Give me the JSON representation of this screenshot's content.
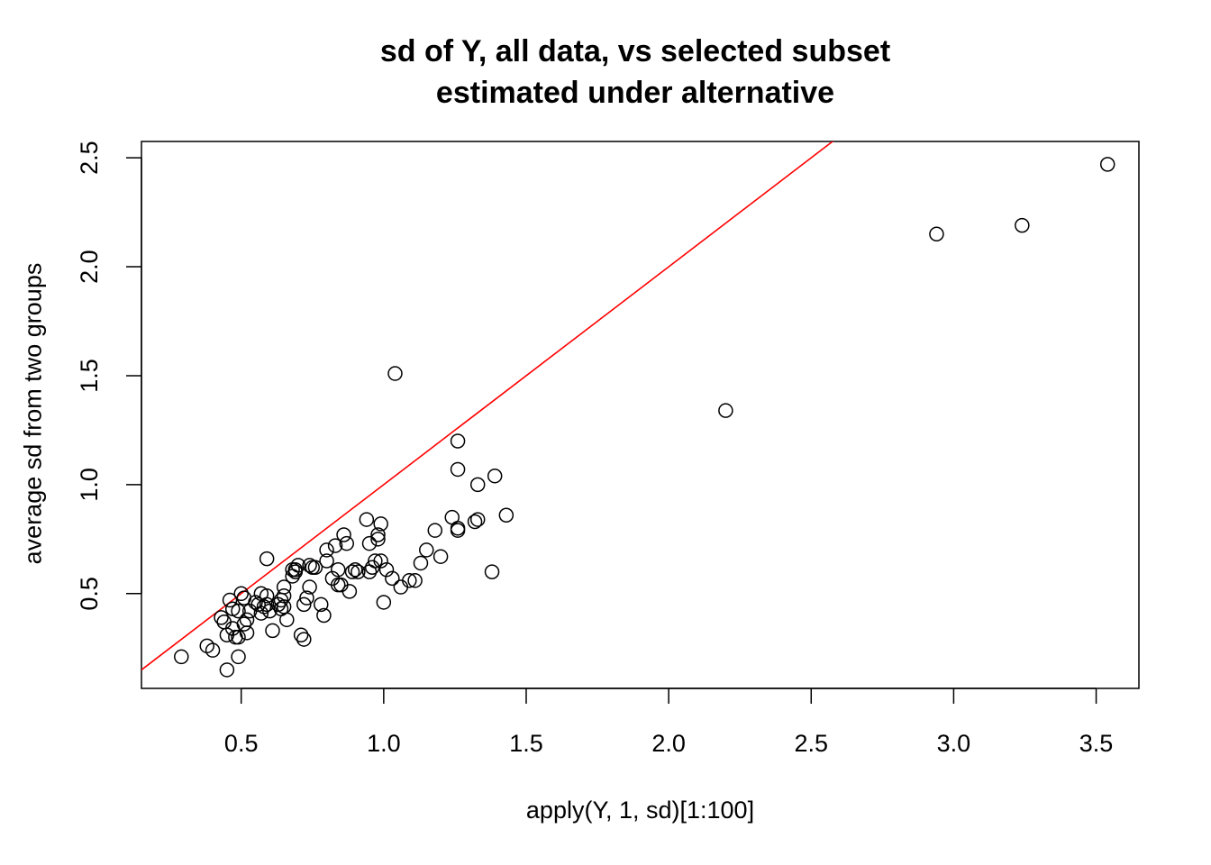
{
  "chart_data": {
    "type": "scatter",
    "title": [
      "sd of Y, all data, vs selected subset",
      "estimated under alternative"
    ],
    "xlabel": "apply(Y, 1, sd)[1:100]",
    "ylabel": "average sd from two groups",
    "xlim": [
      0.15,
      3.65
    ],
    "ylim": [
      0.065,
      2.575
    ],
    "xticks": [
      0.5,
      1.0,
      1.5,
      2.0,
      2.5,
      3.0,
      3.5
    ],
    "xtick_labels": [
      "0.5",
      "1.0",
      "1.5",
      "2.0",
      "2.5",
      "3.0",
      "3.5"
    ],
    "yticks": [
      0.5,
      1.0,
      1.5,
      2.0,
      2.5
    ],
    "ytick_labels": [
      "0.5",
      "1.0",
      "1.5",
      "2.0",
      "2.5"
    ],
    "grid": false,
    "point_color": "#000000",
    "reference_line": {
      "intercept": 0,
      "slope": 1,
      "color": "#ff0000"
    },
    "x": [
      0.29,
      0.38,
      0.4,
      0.45,
      0.49,
      0.43,
      0.44,
      0.45,
      0.47,
      0.48,
      0.49,
      0.49,
      0.46,
      0.47,
      0.5,
      0.51,
      0.51,
      0.52,
      0.52,
      0.53,
      0.55,
      0.56,
      0.57,
      0.57,
      0.58,
      0.59,
      0.59,
      0.6,
      0.61,
      0.63,
      0.64,
      0.64,
      0.65,
      0.65,
      0.65,
      0.66,
      0.68,
      0.68,
      0.69,
      0.69,
      0.7,
      0.71,
      0.72,
      0.72,
      0.73,
      0.74,
      0.74,
      0.75,
      0.76,
      0.78,
      0.79,
      0.8,
      0.8,
      0.82,
      0.83,
      0.84,
      0.84,
      0.85,
      0.86,
      0.87,
      0.88,
      0.89,
      0.9,
      0.91,
      0.94,
      0.95,
      0.95,
      0.96,
      0.97,
      0.98,
      0.98,
      0.99,
      0.99,
      1.0,
      1.01,
      1.03,
      1.04,
      1.06,
      1.09,
      1.11,
      1.13,
      1.15,
      1.18,
      1.2,
      1.24,
      1.26,
      1.26,
      1.26,
      1.26,
      1.32,
      1.33,
      1.33,
      1.38,
      1.39,
      1.43,
      2.2,
      2.94,
      3.24,
      3.54,
      0.59
    ],
    "y": [
      0.21,
      0.26,
      0.24,
      0.15,
      0.21,
      0.39,
      0.37,
      0.31,
      0.34,
      0.3,
      0.3,
      0.42,
      0.47,
      0.43,
      0.5,
      0.48,
      0.36,
      0.32,
      0.38,
      0.42,
      0.46,
      0.45,
      0.5,
      0.41,
      0.44,
      0.49,
      0.45,
      0.42,
      0.33,
      0.45,
      0.43,
      0.47,
      0.53,
      0.49,
      0.44,
      0.38,
      0.58,
      0.61,
      0.61,
      0.6,
      0.63,
      0.31,
      0.29,
      0.45,
      0.48,
      0.53,
      0.63,
      0.62,
      0.62,
      0.45,
      0.4,
      0.7,
      0.65,
      0.57,
      0.72,
      0.61,
      0.54,
      0.54,
      0.77,
      0.73,
      0.51,
      0.6,
      0.61,
      0.6,
      0.84,
      0.73,
      0.6,
      0.62,
      0.65,
      0.77,
      0.75,
      0.82,
      0.65,
      0.46,
      0.61,
      0.57,
      1.51,
      0.53,
      0.56,
      0.56,
      0.64,
      0.7,
      0.79,
      0.67,
      0.85,
      1.2,
      1.07,
      0.8,
      0.79,
      0.83,
      0.84,
      1.0,
      0.6,
      1.04,
      0.86,
      1.34,
      2.15,
      2.19,
      2.47,
      0.66
    ]
  }
}
